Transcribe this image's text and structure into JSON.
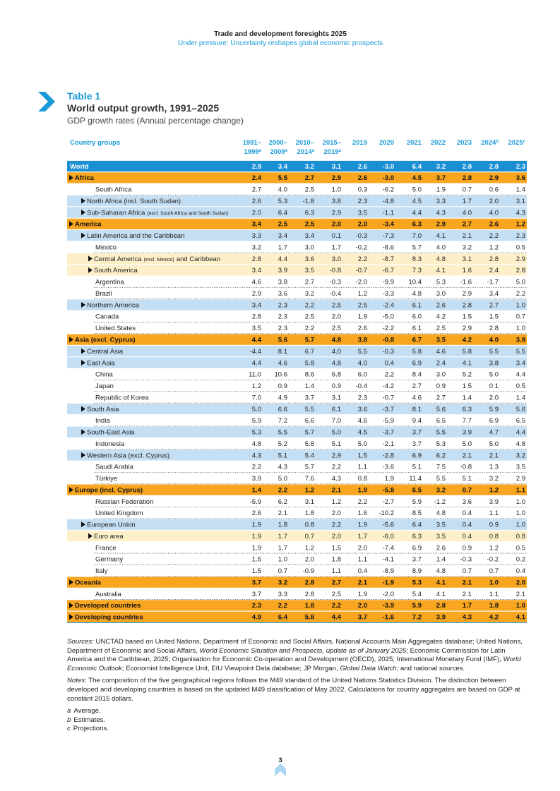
{
  "header": {
    "title": "Trade and development foresights 2025",
    "subtitle": "Under pressure: Uncertainty reshapes global economic prospects"
  },
  "table": {
    "label": "Table 1",
    "title": "World output growth, 1991–2025",
    "subtitle": "GDP growth rates (Annual percentage change)",
    "first_column": "Country groups",
    "columns": [
      {
        "line1": "1991–",
        "line2": "1999",
        "note": "a"
      },
      {
        "line1": "2000–",
        "line2": "2009",
        "note": "a"
      },
      {
        "line1": "2010–",
        "line2": "2014",
        "note": "a"
      },
      {
        "line1": "2015–",
        "line2": "2019",
        "note": "a"
      },
      {
        "line1": "2019"
      },
      {
        "line1": "2020"
      },
      {
        "line1": "2021"
      },
      {
        "line1": "2022"
      },
      {
        "line1": "2023"
      },
      {
        "line1": "2024",
        "note": "b"
      },
      {
        "line1": "2025",
        "note": "c"
      }
    ],
    "rows": [
      {
        "level": "world",
        "name": "World",
        "values": [
          "2.9",
          "3.4",
          "3.2",
          "3.1",
          "2.6",
          "-3.0",
          "6.4",
          "3.2",
          "2.8",
          "2.8",
          "2.3"
        ]
      },
      {
        "level": "region",
        "name": "Africa",
        "values": [
          "2.4",
          "5.5",
          "2.7",
          "2.9",
          "2.6",
          "-3.0",
          "4.5",
          "3.7",
          "2.8",
          "2.9",
          "3.6"
        ]
      },
      {
        "level": "country",
        "name": "South Africa",
        "values": [
          "2.7",
          "4.0",
          "2.5",
          "1.0",
          "0.3",
          "-6.2",
          "5.0",
          "1.9",
          "0.7",
          "0.6",
          "1.4"
        ]
      },
      {
        "level": "sub",
        "name": "North Africa (incl. South Sudan)",
        "values": [
          "2.6",
          "5.3",
          "-1.8",
          "3.8",
          "2.3",
          "-4.8",
          "4.5",
          "3.3",
          "1.7",
          "2.0",
          "3.1"
        ]
      },
      {
        "level": "sub",
        "name": [
          "Sub-Saharan Africa",
          "(excl. South Africa and South Sudan)"
        ],
        "values": [
          "2.0",
          "6.4",
          "6.3",
          "2.9",
          "3.5",
          "-1.1",
          "4.4",
          "4.3",
          "4.0",
          "4.0",
          "4.3"
        ]
      },
      {
        "level": "region",
        "name": "America",
        "values": [
          "3.4",
          "2.5",
          "2.5",
          "2.0",
          "2.0",
          "-3.4",
          "6.3",
          "2.9",
          "2.7",
          "2.6",
          "1.2"
        ]
      },
      {
        "level": "sub",
        "name": "Latin America and the Caribbean",
        "values": [
          "3.3",
          "3.4",
          "3.4",
          "0.1",
          "-0.3",
          "-7.3",
          "7.0",
          "4.1",
          "2.1",
          "2.2",
          "2.3"
        ]
      },
      {
        "level": "country",
        "name": "Mexico",
        "values": [
          "3.2",
          "1.7",
          "3.0",
          "1.7",
          "-0.2",
          "-8.6",
          "5.7",
          "4.0",
          "3.2",
          "1.2",
          "0.5"
        ]
      },
      {
        "level": "subsub",
        "name": [
          "Central America",
          "(excl. Mexico)",
          "and Caribbean"
        ],
        "values": [
          "2.8",
          "4.4",
          "3.6",
          "3.0",
          "2.2",
          "-8.7",
          "8.3",
          "4.8",
          "3.1",
          "2.8",
          "2.9"
        ]
      },
      {
        "level": "subsub",
        "name": "South America",
        "values": [
          "3.4",
          "3.9",
          "3.5",
          "-0.8",
          "-0.7",
          "-6.7",
          "7.3",
          "4.1",
          "1.6",
          "2.4",
          "2.8"
        ]
      },
      {
        "level": "country",
        "name": "Argentina",
        "values": [
          "4.6",
          "3.8",
          "2.7",
          "-0.3",
          "-2.0",
          "-9.9",
          "10.4",
          "5.3",
          "-1.6",
          "-1.7",
          "5.0"
        ]
      },
      {
        "level": "country",
        "name": "Brazil",
        "values": [
          "2.9",
          "3.6",
          "3.2",
          "-0.4",
          "1.2",
          "-3.3",
          "4.8",
          "3.0",
          "2.9",
          "3.4",
          "2.2"
        ]
      },
      {
        "level": "sub",
        "name": "Northern America",
        "values": [
          "3.4",
          "2.3",
          "2.2",
          "2.5",
          "2.5",
          "-2.4",
          "6.1",
          "2.6",
          "2.8",
          "2.7",
          "1.0"
        ]
      },
      {
        "level": "country",
        "name": "Canada",
        "values": [
          "2.8",
          "2.3",
          "2.5",
          "2.0",
          "1.9",
          "-5.0",
          "6.0",
          "4.2",
          "1.5",
          "1.5",
          "0.7"
        ]
      },
      {
        "level": "country",
        "name": "United States",
        "values": [
          "3.5",
          "2.3",
          "2.2",
          "2.5",
          "2.6",
          "-2.2",
          "6.1",
          "2.5",
          "2.9",
          "2.8",
          "1.0"
        ]
      },
      {
        "level": "region",
        "name": "Asia (excl. Cyprus)",
        "values": [
          "4.4",
          "5.6",
          "5.7",
          "4.8",
          "3.8",
          "-0.8",
          "6.7",
          "3.5",
          "4.2",
          "4.0",
          "3.8"
        ]
      },
      {
        "level": "sub",
        "name": "Central Asia",
        "values": [
          "-4.4",
          "8.1",
          "6.7",
          "4.0",
          "5.5",
          "-0.3",
          "5.8",
          "4.6",
          "5.8",
          "5.5",
          "5.5"
        ]
      },
      {
        "level": "sub",
        "name": "East Asia",
        "values": [
          "4.4",
          "4.6",
          "5.8",
          "4.8",
          "4.0",
          "0.4",
          "6.9",
          "2.4",
          "4.1",
          "3.8",
          "3.4"
        ]
      },
      {
        "level": "country",
        "name": "China",
        "values": [
          "11.0",
          "10.6",
          "8.6",
          "6.8",
          "6.0",
          "2.2",
          "8.4",
          "3.0",
          "5.2",
          "5.0",
          "4.4"
        ]
      },
      {
        "level": "country",
        "name": "Japan",
        "values": [
          "1.2",
          "0.9",
          "1.4",
          "0.9",
          "-0.4",
          "-4.2",
          "2.7",
          "0.9",
          "1.5",
          "0.1",
          "0.5"
        ]
      },
      {
        "level": "country",
        "name": "Republic of Korea",
        "values": [
          "7.0",
          "4.9",
          "3.7",
          "3.1",
          "2.3",
          "-0.7",
          "4.6",
          "2.7",
          "1.4",
          "2.0",
          "1.4"
        ]
      },
      {
        "level": "sub",
        "name": "South Asia",
        "values": [
          "5.0",
          "6.6",
          "5.5",
          "6.1",
          "3.6",
          "-3.7",
          "8.1",
          "5.6",
          "6.3",
          "5.9",
          "5.6"
        ]
      },
      {
        "level": "country",
        "name": "India",
        "values": [
          "5.9",
          "7.2",
          "6.6",
          "7.0",
          "4.6",
          "-5.9",
          "9.4",
          "6.5",
          "7.7",
          "6.9",
          "6.5"
        ]
      },
      {
        "level": "sub",
        "name": "South-East Asia",
        "values": [
          "5.3",
          "5.5",
          "5.7",
          "5.0",
          "4.5",
          "-3.7",
          "3.7",
          "5.5",
          "3.9",
          "4.7",
          "4.4"
        ]
      },
      {
        "level": "country",
        "name": "Indonesia",
        "values": [
          "4.8",
          "5.2",
          "5.8",
          "5.1",
          "5.0",
          "-2.1",
          "3.7",
          "5.3",
          "5.0",
          "5.0",
          "4.8"
        ]
      },
      {
        "level": "sub",
        "name": "Western Asia (excl. Cyprus)",
        "values": [
          "4.3",
          "5.1",
          "5.4",
          "2.9",
          "1.5",
          "-2.8",
          "6.9",
          "6.2",
          "2.1",
          "2.1",
          "3.2"
        ]
      },
      {
        "level": "country",
        "name": "Saudi Arabia",
        "values": [
          "2.2",
          "4.3",
          "5.7",
          "2.2",
          "1.1",
          "-3.6",
          "5.1",
          "7.5",
          "-0.8",
          "1.3",
          "3.5"
        ]
      },
      {
        "level": "country",
        "name": "Türkiye",
        "values": [
          "3.9",
          "5.0",
          "7.6",
          "4.3",
          "0.8",
          "1.9",
          "11.4",
          "5.5",
          "5.1",
          "3.2",
          "2.9"
        ]
      },
      {
        "level": "region",
        "name": "Europe (incl. Cyprus)",
        "values": [
          "1.4",
          "2.2",
          "1.2",
          "2.1",
          "1.9",
          "-5.8",
          "6.5",
          "3.2",
          "0.7",
          "1.2",
          "1.1"
        ]
      },
      {
        "level": "country",
        "name": "Russian Federation",
        "values": [
          "-5.9",
          "6.2",
          "3.1",
          "1.2",
          "2.2",
          "-2.7",
          "5.9",
          "-1.2",
          "3.6",
          "3.9",
          "1.0"
        ]
      },
      {
        "level": "country",
        "name": "United Kingdom",
        "values": [
          "2.6",
          "2.1",
          "1.8",
          "2.0",
          "1.6",
          "-10.2",
          "8.5",
          "4.8",
          "0.4",
          "1.1",
          "1.0"
        ]
      },
      {
        "level": "sub",
        "name": "European Union",
        "values": [
          "1.9",
          "1.8",
          "0.8",
          "2.2",
          "1.9",
          "-5.6",
          "6.4",
          "3.5",
          "0.4",
          "0.9",
          "1.0"
        ]
      },
      {
        "level": "subsub",
        "name": "Euro area",
        "values": [
          "1.9",
          "1.7",
          "0.7",
          "2.0",
          "1.7",
          "-6.0",
          "6.3",
          "3.5",
          "0.4",
          "0.8",
          "0.8"
        ]
      },
      {
        "level": "country",
        "name": "France",
        "values": [
          "1.9",
          "1.7",
          "1.2",
          "1.5",
          "2.0",
          "-7.4",
          "6.9",
          "2.6",
          "0.9",
          "1.2",
          "0.5"
        ]
      },
      {
        "level": "country",
        "name": "Germany",
        "values": [
          "1.5",
          "1.0",
          "2.0",
          "1.8",
          "1.1",
          "-4.1",
          "3.7",
          "1.4",
          "-0.3",
          "-0.2",
          "0.2"
        ]
      },
      {
        "level": "country",
        "name": "Italy",
        "values": [
          "1.5",
          "0.7",
          "-0.9",
          "1.1",
          "0.4",
          "-8.9",
          "8.9",
          "4.8",
          "0.7",
          "0.7",
          "0.4"
        ]
      },
      {
        "level": "region",
        "name": "Oceania",
        "values": [
          "3.7",
          "3.2",
          "2.8",
          "2.7",
          "2.1",
          "-1.9",
          "5.3",
          "4.1",
          "2.1",
          "1.0",
          "2.0"
        ]
      },
      {
        "level": "country",
        "name": "Australia",
        "values": [
          "3.7",
          "3.3",
          "2.8",
          "2.5",
          "1.9",
          "-2.0",
          "5.4",
          "4.1",
          "2.1",
          "1.1",
          "2.1"
        ]
      },
      {
        "level": "region",
        "name": "Developed countries",
        "values": [
          "2.3",
          "2.2",
          "1.8",
          "2.2",
          "2.0",
          "-3.9",
          "5.9",
          "2.8",
          "1.7",
          "1.8",
          "1.0"
        ]
      },
      {
        "level": "region",
        "name": "Developing countries",
        "values": [
          "4.9",
          "6.4",
          "5.8",
          "4.4",
          "3.7",
          "-1.6",
          "7.2",
          "3.9",
          "4.3",
          "4.2",
          "4.1"
        ]
      }
    ]
  },
  "notes": {
    "sources": [
      {
        "text": "Sources:",
        "italic": true
      },
      {
        "text": " UNCTAD based on United Nations, Department of Economic and Social Affairs, National Accounts Main Aggregates database; United Nations, Department of Economic and Social Affairs, "
      },
      {
        "text": "World Economic Situation and Prospects, update as of January 2025",
        "italic": true
      },
      {
        "text": "; Economic Commission for Latin America and the Caribbean, 2025; Organisation for Economic Co-operation and Development (OECD), 2025; International Monetary Fund (IMF), "
      },
      {
        "text": "World Economic Outlook",
        "italic": true
      },
      {
        "text": "; Economist Intelligence Unit, EIU Viewpoint Data database; JP Morgan, "
      },
      {
        "text": "Global Data Watch",
        "italic": true
      },
      {
        "text": "; and national sources."
      }
    ],
    "notes": [
      {
        "text": "Notes",
        "italic": true
      },
      {
        "text": ": The composition of the five geographical regions follows the M49 standard of the United Nations Statistics Division. The distinction between developed and developing countries is based on the updated M49 classification of May 2022. Calculations for country aggregates are based on GDP at constant 2015 dollars."
      }
    ],
    "footnotes": [
      {
        "key": "a",
        "text": "Average."
      },
      {
        "key": "b",
        "text": "Estimates."
      },
      {
        "key": "c",
        "text": "Projections."
      }
    ]
  },
  "page_number": "3"
}
